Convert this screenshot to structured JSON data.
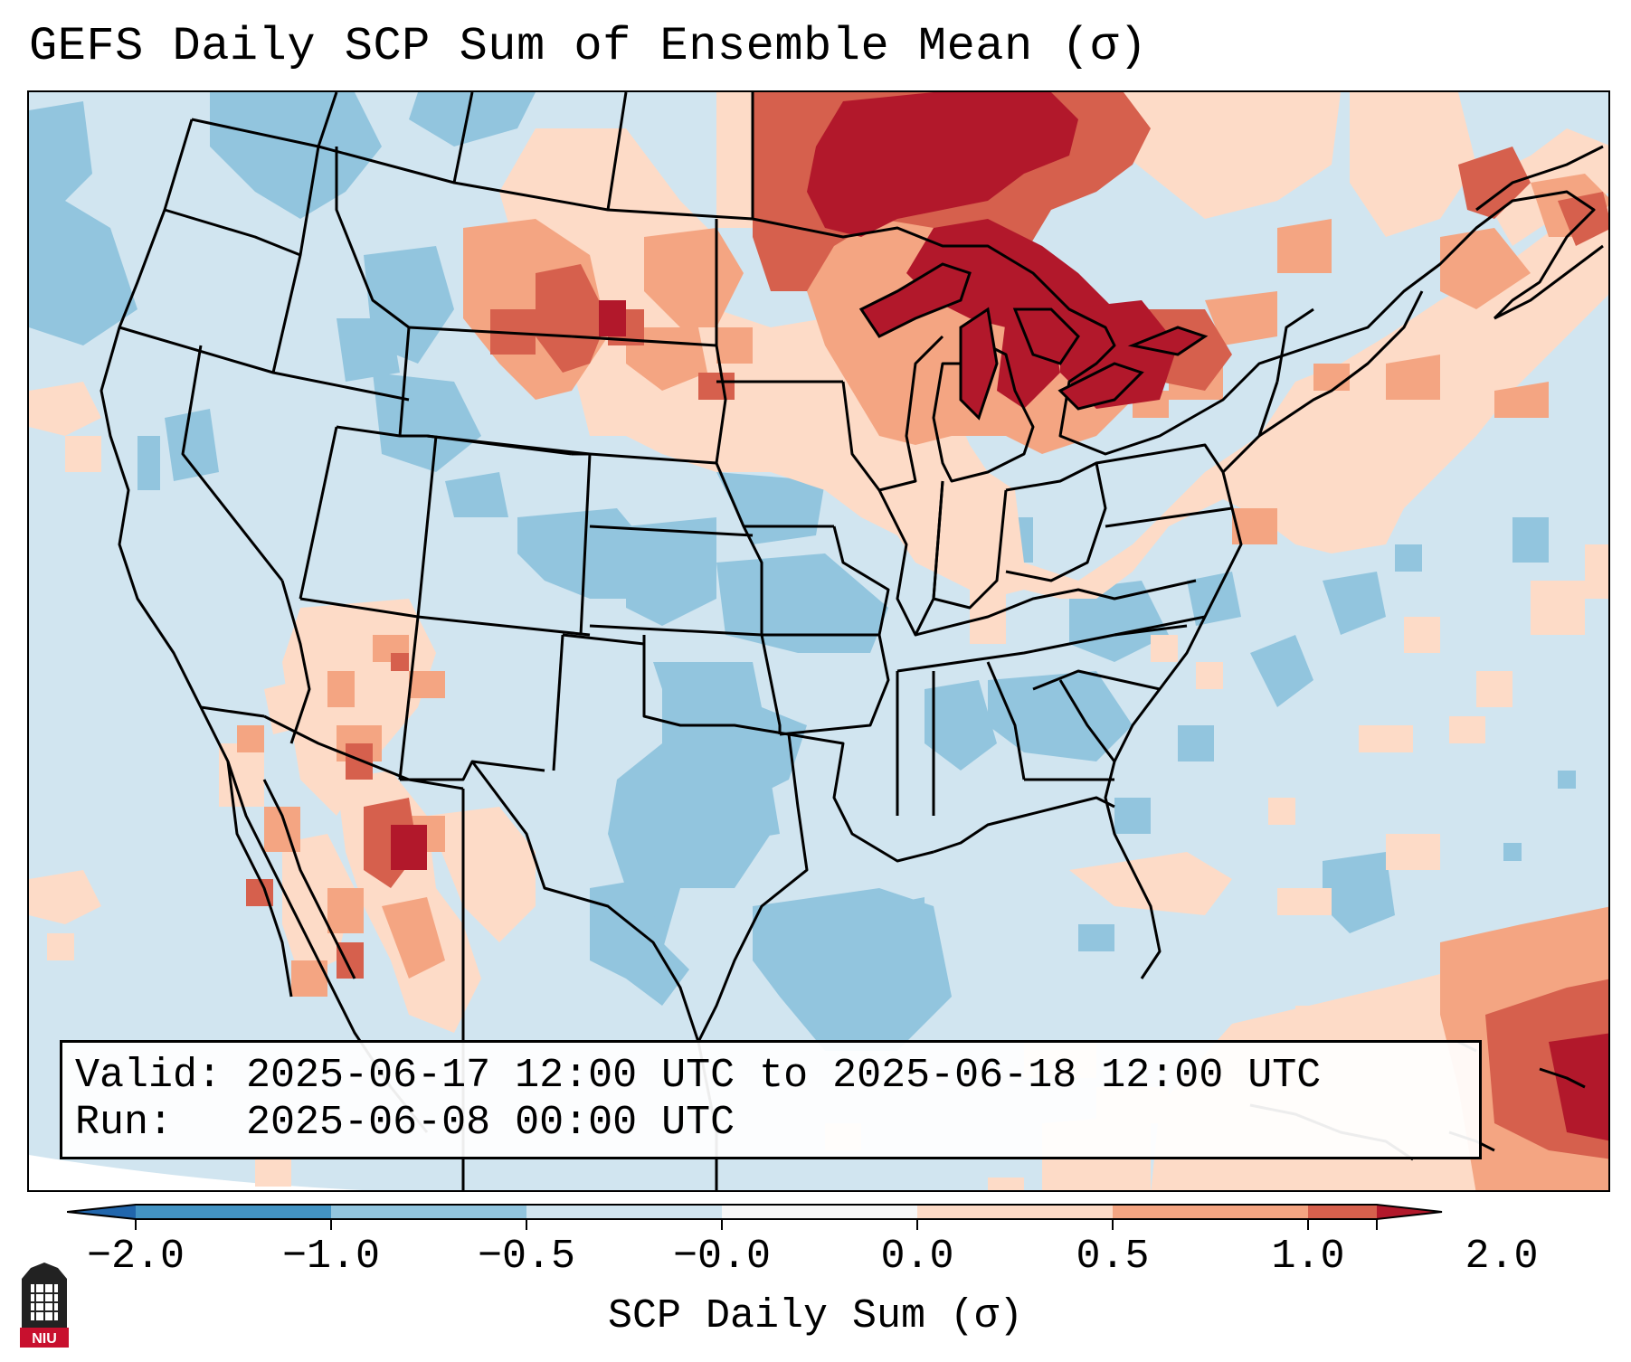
{
  "title": "GEFS Daily SCP Sum of Ensemble Mean (σ)",
  "info": {
    "valid_label": "Valid:",
    "valid_value": "2025-06-17 12:00 UTC to 2025-06-18 12:00 UTC",
    "run_label": "Run:",
    "run_value": "2025-06-08 00:00 UTC"
  },
  "colorbar": {
    "label": "SCP Daily Sum (σ)",
    "ticks": [
      "−2.0",
      "−1.0",
      "−0.5",
      "−0.0",
      "0.0",
      "0.5",
      "1.0",
      "2.0"
    ],
    "colors": {
      "below_min": "#2166ac",
      "bin_m2_m1": "#4393c3",
      "bin_m1_m05": "#92c5de",
      "bin_m05_0": "#d1e5f0",
      "bin_0_0": "#f7f7f7",
      "bin_0_05": "#fddbc7",
      "bin_05_1": "#f4a582",
      "bin_1_2": "#d6604d",
      "above_max": "#b2182b"
    }
  },
  "map": {
    "projection": "Lambert conformal, CONUS",
    "field_colors": {
      "ocean_background": "#d1e5f0",
      "neg_mod": "#92c5de",
      "pos_light": "#fddbc7",
      "pos_mod": "#f4a582",
      "pos_high": "#d6604d",
      "pos_max": "#b2182b"
    }
  },
  "logo": {
    "icon": "niu-logo-icon",
    "text": "NIU"
  }
}
